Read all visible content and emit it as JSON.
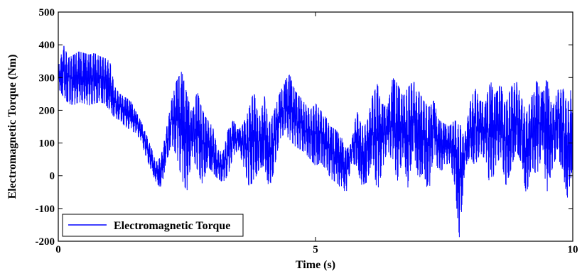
{
  "chart_data": {
    "type": "line",
    "title": "",
    "xlabel": "Time (s)",
    "ylabel": "Electromagnetic Torque (Nm)",
    "xlim": [
      0,
      10
    ],
    "ylim": [
      -200,
      500
    ],
    "xticks": [
      0,
      5,
      10
    ],
    "yticks": [
      -200,
      -100,
      0,
      100,
      200,
      300,
      400,
      500
    ],
    "grid": false,
    "legend_position": "bottom-left",
    "series": [
      {
        "name": "Electromagnetic Torque",
        "color": "#0000ff",
        "x": [
          0.0,
          0.1,
          0.2,
          0.3,
          0.4,
          0.5,
          0.6,
          0.7,
          0.8,
          0.9,
          1.0,
          1.1,
          1.2,
          1.3,
          1.4,
          1.5,
          1.6,
          1.7,
          1.8,
          1.9,
          2.0,
          2.1,
          2.2,
          2.3,
          2.4,
          2.5,
          2.6,
          2.7,
          2.8,
          2.9,
          3.0,
          3.1,
          3.2,
          3.3,
          3.4,
          3.5,
          3.6,
          3.7,
          3.8,
          3.9,
          4.0,
          4.1,
          4.2,
          4.3,
          4.4,
          4.5,
          4.6,
          4.7,
          4.8,
          4.9,
          5.0,
          5.1,
          5.2,
          5.3,
          5.4,
          5.5,
          5.6,
          5.7,
          5.8,
          5.9,
          6.0,
          6.1,
          6.2,
          6.3,
          6.4,
          6.5,
          6.6,
          6.7,
          6.8,
          6.9,
          7.0,
          7.1,
          7.2,
          7.3,
          7.4,
          7.5,
          7.6,
          7.7,
          7.8,
          7.9,
          8.0,
          8.1,
          8.2,
          8.3,
          8.4,
          8.5,
          8.6,
          8.7,
          8.8,
          8.9,
          9.0,
          9.1,
          9.2,
          9.3,
          9.4,
          9.5,
          9.6,
          9.7,
          9.8,
          9.9,
          10.0
        ],
        "min": [
          270,
          240,
          220,
          215,
          225,
          220,
          215,
          220,
          225,
          220,
          200,
          175,
          170,
          150,
          140,
          130,
          110,
          60,
          20,
          -20,
          -40,
          40,
          100,
          60,
          -10,
          -50,
          60,
          20,
          -30,
          30,
          10,
          -10,
          -20,
          0,
          60,
          80,
          30,
          -30,
          -20,
          20,
          30,
          -40,
          20,
          110,
          130,
          110,
          90,
          80,
          70,
          50,
          30,
          40,
          20,
          -10,
          -20,
          -40,
          -50,
          40,
          30,
          -30,
          -20,
          50,
          -50,
          20,
          80,
          40,
          -20,
          60,
          -40,
          80,
          -10,
          10,
          -60,
          80,
          0,
          30,
          40,
          -20,
          -195,
          20,
          60,
          30,
          70,
          50,
          -40,
          30,
          60,
          -30,
          20,
          80,
          40,
          -60,
          30,
          0,
          60,
          -50,
          20,
          70,
          10,
          -70,
          30
        ],
        "max": [
          330,
          400,
          360,
          370,
          380,
          375,
          370,
          375,
          365,
          360,
          350,
          270,
          250,
          240,
          230,
          200,
          170,
          130,
          90,
          40,
          60,
          140,
          230,
          290,
          320,
          250,
          190,
          260,
          200,
          170,
          150,
          80,
          70,
          140,
          170,
          140,
          160,
          200,
          260,
          170,
          250,
          160,
          200,
          250,
          290,
          310,
          260,
          240,
          220,
          200,
          220,
          200,
          180,
          150,
          140,
          120,
          80,
          100,
          200,
          150,
          160,
          240,
          280,
          220,
          210,
          300,
          280,
          240,
          270,
          290,
          260,
          230,
          210,
          230,
          170,
          160,
          150,
          170,
          160,
          120,
          220,
          270,
          230,
          220,
          290,
          250,
          280,
          220,
          270,
          290,
          240,
          190,
          240,
          290,
          250,
          300,
          200,
          260,
          270,
          220,
          290
        ]
      }
    ]
  }
}
